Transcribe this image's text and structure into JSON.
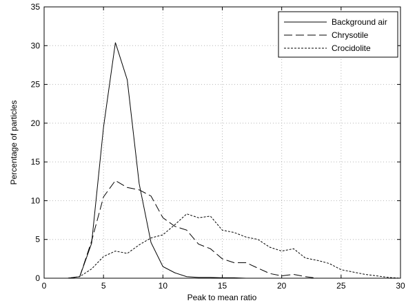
{
  "chart_data": {
    "type": "line",
    "title": "",
    "xlabel": "Peak to mean ratio",
    "ylabel": "Percentage of particles",
    "xlim": [
      0,
      30
    ],
    "ylim": [
      0,
      35
    ],
    "xticks": [
      0,
      5,
      10,
      15,
      20,
      25,
      30
    ],
    "yticks": [
      0,
      5,
      10,
      15,
      20,
      25,
      30,
      35
    ],
    "grid": true,
    "legend_position": "top-right",
    "series": [
      {
        "name": "Background air",
        "style": "solid",
        "color": "#000000",
        "x": [
          2,
          3,
          4,
          5,
          6,
          7,
          8,
          9,
          10,
          11,
          12,
          13,
          14,
          15,
          16,
          17,
          18,
          19
        ],
        "y": [
          0,
          0.2,
          4.5,
          19.5,
          30.4,
          25.6,
          12.2,
          4.6,
          1.5,
          0.7,
          0.2,
          0.1,
          0.1,
          0.05,
          0.05,
          0,
          0,
          0
        ]
      },
      {
        "name": "Chrysotile",
        "style": "dashed",
        "color": "#000000",
        "x": [
          2,
          3,
          4,
          5,
          6,
          7,
          8,
          9,
          10,
          11,
          12,
          13,
          14,
          15,
          16,
          17,
          18,
          19,
          20,
          21,
          22,
          23
        ],
        "y": [
          0,
          0.2,
          4.8,
          10.5,
          12.6,
          11.7,
          11.4,
          10.6,
          7.8,
          6.7,
          6.2,
          4.4,
          3.8,
          2.5,
          2.0,
          2.0,
          1.3,
          0.6,
          0.3,
          0.5,
          0.2,
          0
        ]
      },
      {
        "name": "Crocidolite",
        "style": "dotted",
        "color": "#000000",
        "x": [
          2,
          3,
          4,
          5,
          6,
          7,
          8,
          9,
          10,
          11,
          12,
          13,
          14,
          15,
          16,
          17,
          18,
          19,
          20,
          21,
          22,
          23,
          24,
          25,
          26,
          27,
          28,
          29,
          30
        ],
        "y": [
          0,
          0.2,
          1.2,
          2.8,
          3.5,
          3.2,
          4.3,
          5.2,
          5.6,
          6.9,
          8.3,
          7.8,
          8.0,
          6.2,
          5.9,
          5.3,
          5.0,
          4.0,
          3.5,
          3.8,
          2.6,
          2.3,
          1.9,
          1.1,
          0.8,
          0.5,
          0.3,
          0.1,
          0
        ]
      }
    ]
  }
}
